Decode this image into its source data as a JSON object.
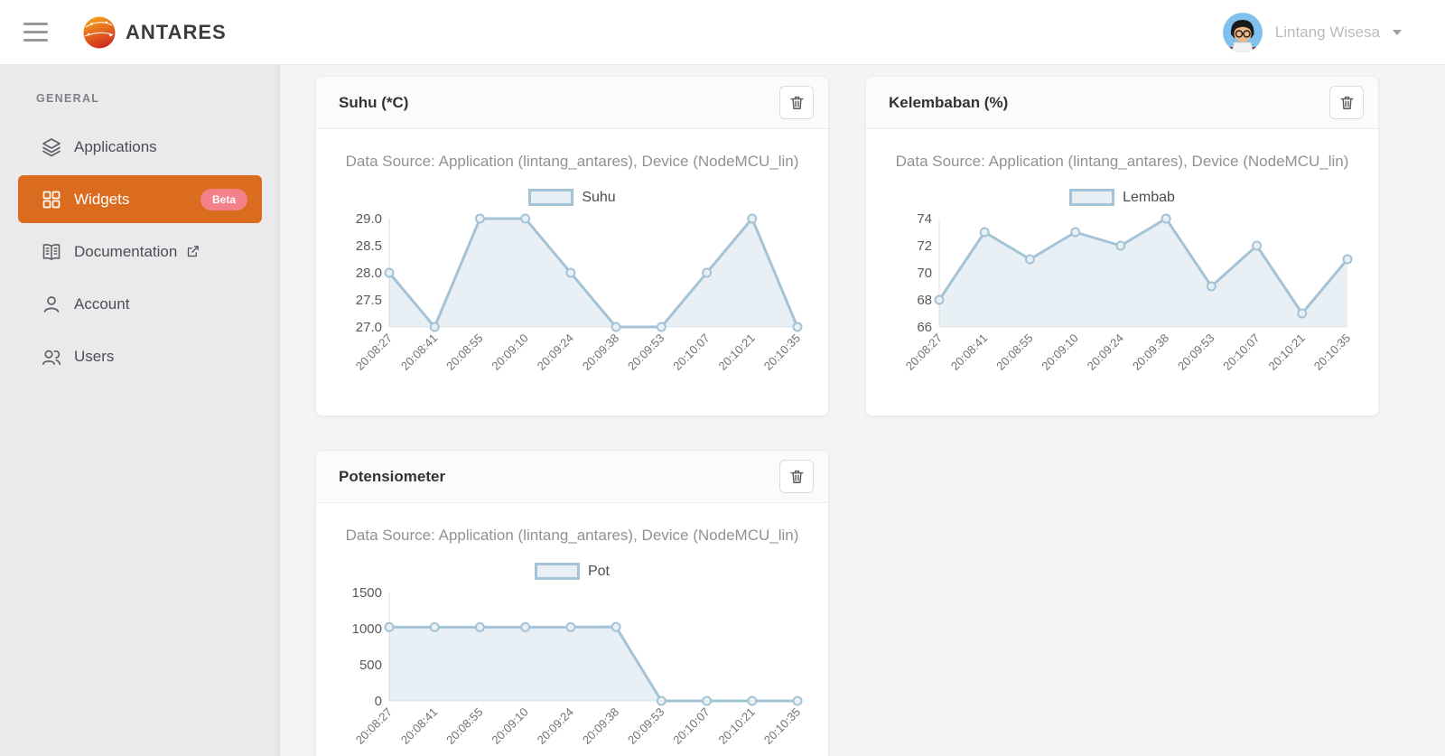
{
  "header": {
    "brand": "ANTARES",
    "user_name": "Lintang Wisesa"
  },
  "sidebar": {
    "section_label": "GENERAL",
    "items": [
      {
        "label": "Applications"
      },
      {
        "label": "Widgets",
        "badge": "Beta"
      },
      {
        "label": "Documentation"
      },
      {
        "label": "Account"
      },
      {
        "label": "Users"
      }
    ]
  },
  "colors": {
    "accent_orange": "#DB6C1F",
    "badge_pink": "#F38189",
    "chart_line": "#A5C3D7",
    "chart_fill": "rgba(165,195,215,0.25)",
    "chart_marker_fill": "#E9F0F5"
  },
  "chart_data": [
    {
      "type": "area",
      "title": "Suhu (*C)",
      "data_source": "Data Source: Application (lintang_antares), Device (NodeMCU_lin)",
      "legend": "Suhu",
      "legend_position": "top",
      "grid": false,
      "x": [
        "20:08:27",
        "20:08:41",
        "20:08:55",
        "20:09:10",
        "20:09:24",
        "20:09:38",
        "20:09:53",
        "20:10:07",
        "20:10:21",
        "20:10:35"
      ],
      "values": [
        28,
        27,
        29,
        29,
        28,
        27,
        27,
        28,
        29,
        27
      ],
      "ytick_labels": [
        "29.0",
        "28.5",
        "28.0",
        "27.5",
        "27.0"
      ],
      "ylim": [
        27,
        29
      ]
    },
    {
      "type": "area",
      "title": "Kelembaban (%)",
      "data_source": "Data Source: Application (lintang_antares), Device (NodeMCU_lin)",
      "legend": "Lembab",
      "legend_position": "top",
      "grid": false,
      "x": [
        "20:08:27",
        "20:08:41",
        "20:08:55",
        "20:09:10",
        "20:09:24",
        "20:09:38",
        "20:09:53",
        "20:10:07",
        "20:10:21",
        "20:10:35"
      ],
      "values": [
        68,
        73,
        71,
        73,
        72,
        74,
        69,
        72,
        67,
        71
      ],
      "ytick_labels": [
        "74",
        "72",
        "70",
        "68",
        "66"
      ],
      "ylim": [
        66,
        74
      ]
    },
    {
      "type": "area",
      "title": "Potensiometer",
      "data_source": "Data Source: Application (lintang_antares), Device (NodeMCU_lin)",
      "legend": "Pot",
      "legend_position": "top",
      "grid": false,
      "x": [
        "20:08:27",
        "20:08:41",
        "20:08:55",
        "20:09:10",
        "20:09:24",
        "20:09:38",
        "20:09:53",
        "20:10:07",
        "20:10:21",
        "20:10:35"
      ],
      "values": [
        1020,
        1020,
        1020,
        1020,
        1021,
        1023,
        0,
        0,
        0,
        0
      ],
      "ytick_labels": [
        "1500",
        "1000",
        "500",
        "0"
      ],
      "ylim": [
        0,
        1500
      ]
    }
  ]
}
